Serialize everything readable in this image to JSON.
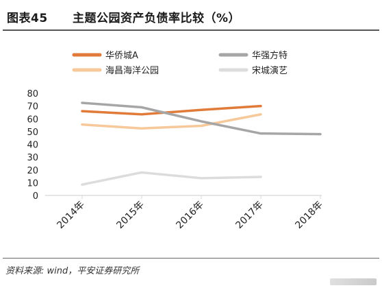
{
  "figure": {
    "label": "图表45",
    "title": "主题公园资产负债率比较（%）",
    "source": "资料来源: wind，平安证券研究所"
  },
  "chart_data": {
    "type": "line",
    "title": "主题公园资产负债率比较（%）",
    "xlabel": "",
    "ylabel": "",
    "categories": [
      "2014年",
      "2015年",
      "2016年",
      "2017年",
      "2018年"
    ],
    "ylim": [
      0,
      80
    ],
    "yticks": [
      0,
      10,
      20,
      30,
      40,
      50,
      60,
      70,
      80
    ],
    "grid": false,
    "legend_position": "top",
    "series": [
      {
        "name": "华侨城A",
        "color": "#e07b39",
        "values": [
          66,
          63.5,
          67,
          70,
          null
        ]
      },
      {
        "name": "华强方特",
        "color": "#a6a6a6",
        "values": [
          72.5,
          69,
          58,
          48.5,
          48
        ]
      },
      {
        "name": "海昌海洋公园",
        "color": "#f6c89a",
        "values": [
          55.5,
          52.5,
          54.5,
          63.5,
          null
        ]
      },
      {
        "name": "宋城演艺",
        "color": "#dcdcdc",
        "values": [
          8.5,
          18,
          13.5,
          14.5,
          null
        ]
      }
    ]
  }
}
